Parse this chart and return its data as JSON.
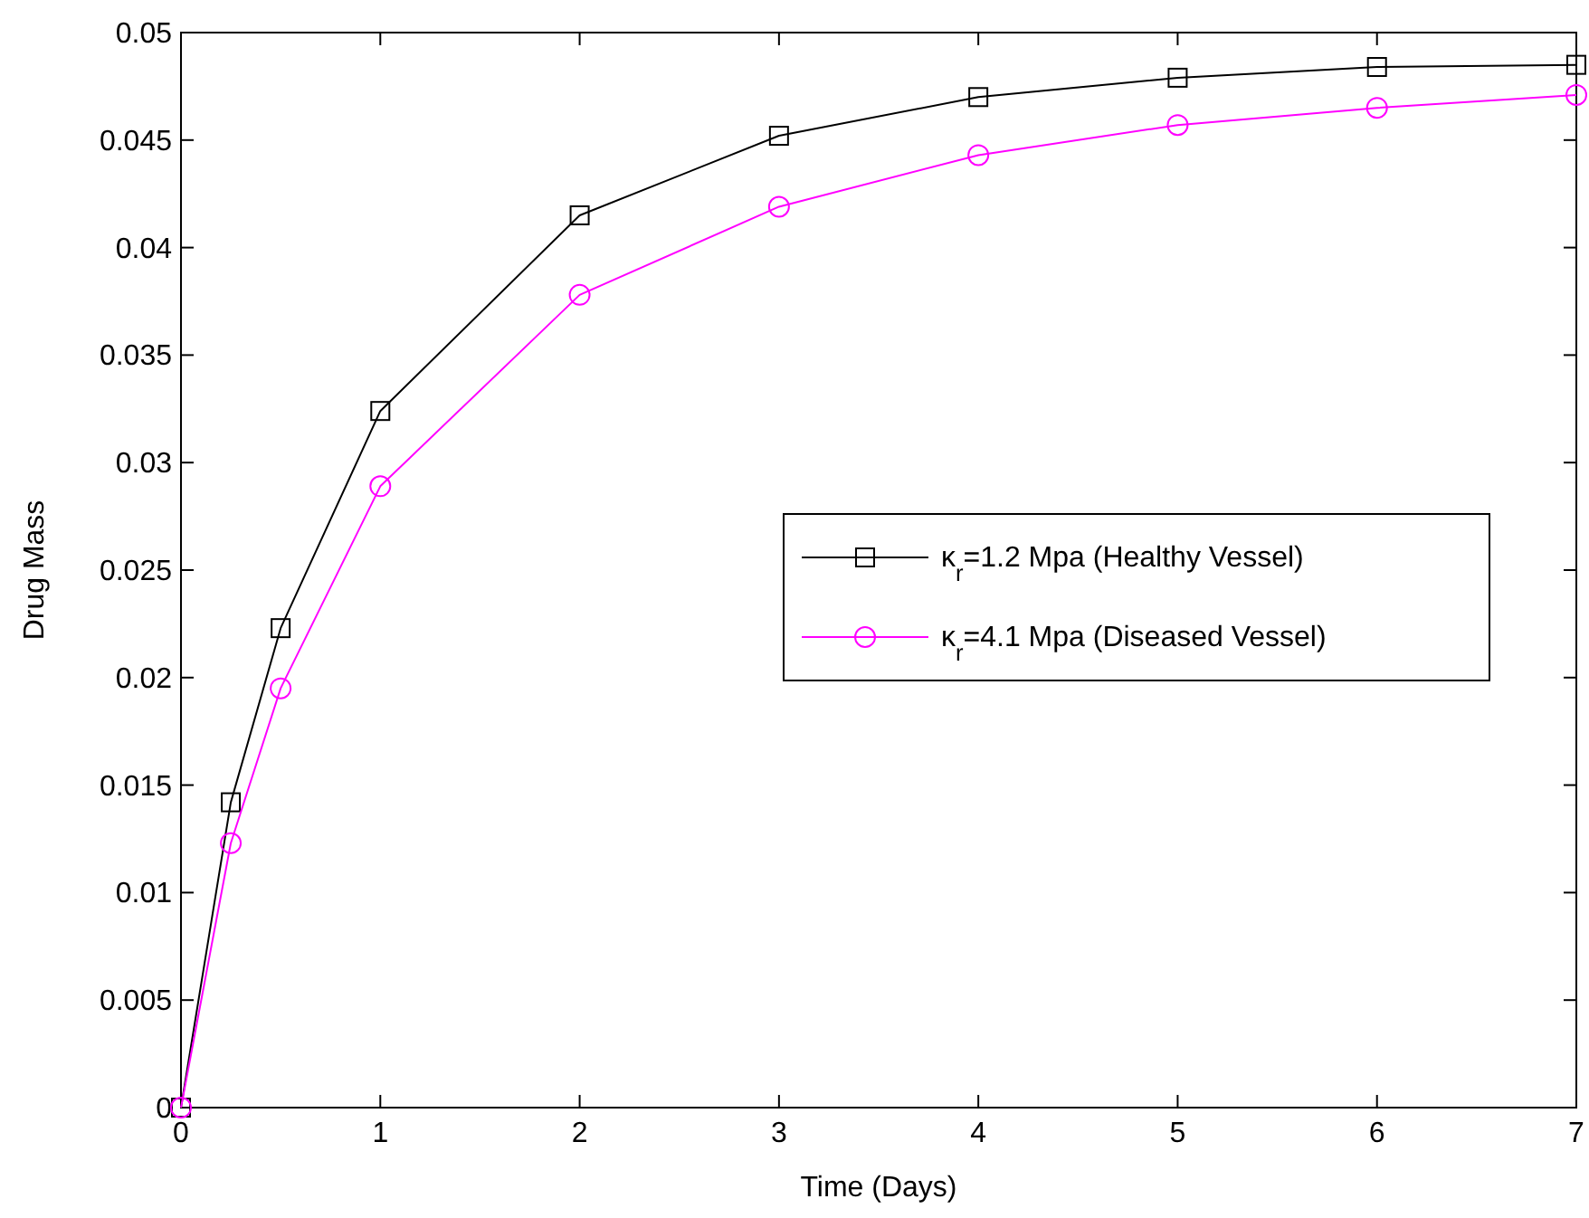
{
  "chart_data": {
    "type": "line",
    "xlabel": "Time (Days)",
    "ylabel": "Drug Mass",
    "x": [
      0,
      0.25,
      0.5,
      1,
      2,
      3,
      4,
      5,
      6,
      7
    ],
    "series": [
      {
        "name": "κ$_{r}$=1.2 Mpa (Healthy Vessel)",
        "color": "#000000",
        "marker": "square",
        "values": [
          0,
          0.0142,
          0.0223,
          0.0324,
          0.0415,
          0.0452,
          0.047,
          0.0479,
          0.0484,
          0.0485
        ]
      },
      {
        "name": "κ$_{r}$=4.1 Mpa (Diseased Vessel)",
        "color": "#ff00ff",
        "marker": "circle",
        "values": [
          0,
          0.0123,
          0.0195,
          0.0289,
          0.0378,
          0.0419,
          0.0443,
          0.0457,
          0.0465,
          0.0471
        ]
      }
    ],
    "xlim": [
      0,
      7
    ],
    "xticks": [
      0,
      1,
      2,
      3,
      4,
      5,
      6,
      7
    ],
    "ylim": [
      0,
      0.05
    ],
    "yticks": [
      0,
      0.005,
      0.01,
      0.015,
      0.02,
      0.025,
      0.03,
      0.035,
      0.04,
      0.045,
      0.05
    ],
    "grid": false,
    "legend": "right",
    "line_style": "solid"
  }
}
